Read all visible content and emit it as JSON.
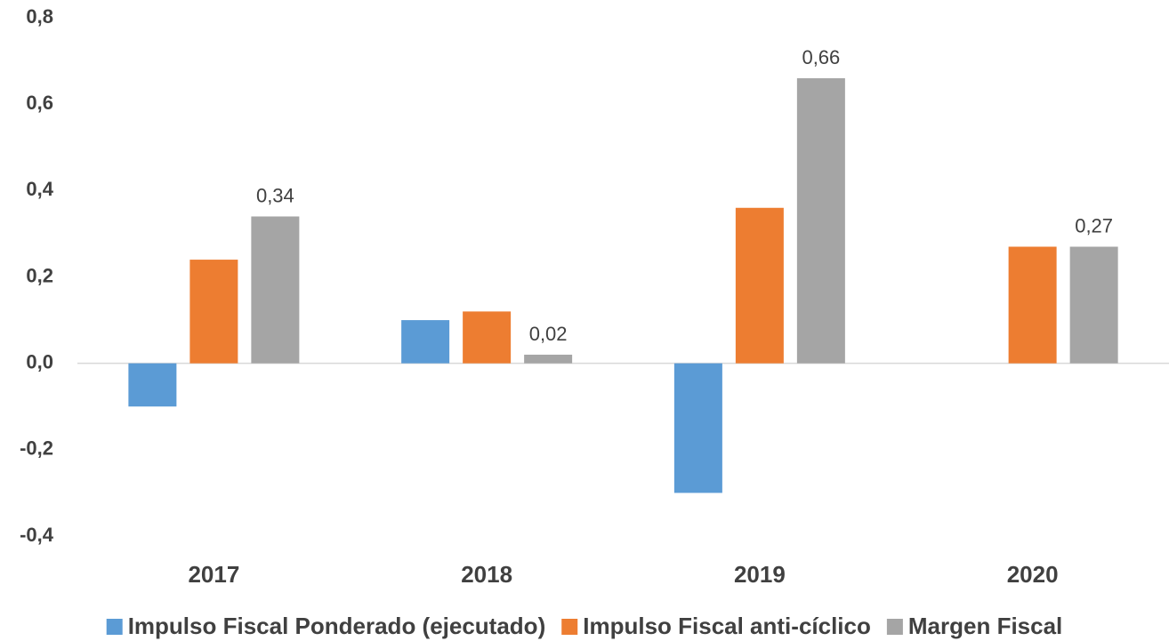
{
  "chart_data": {
    "type": "bar",
    "categories": [
      "2017",
      "2018",
      "2019",
      "2020"
    ],
    "series": [
      {
        "name": "Impulso Fiscal Ponderado (ejecutado)",
        "color": "#5b9bd5",
        "values": [
          -0.1,
          0.1,
          -0.3,
          null
        ]
      },
      {
        "name": "Impulso Fiscal anti-cíclico",
        "color": "#ed7d31",
        "values": [
          0.24,
          0.12,
          0.36,
          0.27
        ]
      },
      {
        "name": "Margen Fiscal",
        "color": "#a5a5a5",
        "values": [
          0.34,
          0.02,
          0.66,
          0.27
        ],
        "value_labels": [
          "0,34",
          "0,02",
          "0,66",
          "0,27"
        ]
      }
    ],
    "ylim": [
      -0.4,
      0.8
    ],
    "yticks": [
      {
        "value": -0.4,
        "label": "-0,4"
      },
      {
        "value": -0.2,
        "label": "-0,2"
      },
      {
        "value": 0,
        "label": "0,0"
      },
      {
        "value": 0.2,
        "label": "0,2"
      },
      {
        "value": 0.4,
        "label": "0,4"
      },
      {
        "value": 0.6,
        "label": "0,6"
      },
      {
        "value": 0.8,
        "label": "0,8"
      }
    ],
    "grid": false,
    "legend": "bottom"
  }
}
